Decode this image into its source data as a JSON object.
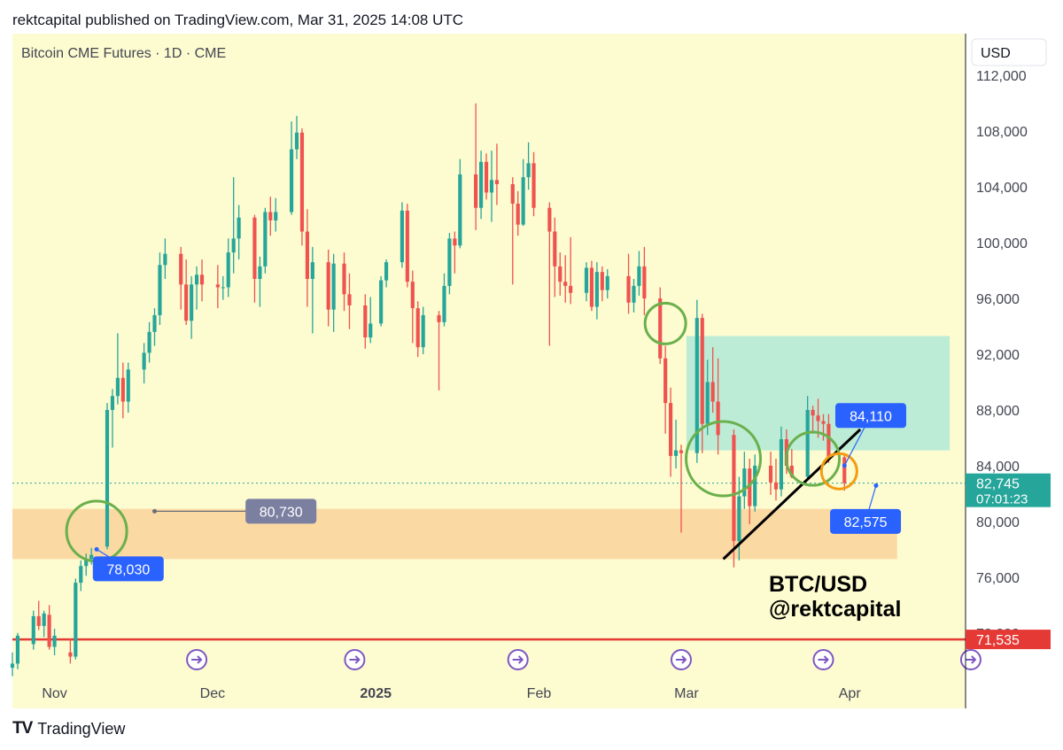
{
  "header": "rektcapital published on TradingView.com, Mar 31, 2025 14:08 UTC",
  "footer": {
    "logo": "TV",
    "brand": "TradingView"
  },
  "colors": {
    "background": "#fdfbd0",
    "up": "#26a69a",
    "down": "#ef5350",
    "label": "#2962ff",
    "zone_demand": "#fbd7a0",
    "zone_range": "#b8ebd5",
    "circle_green": "#6ab04c",
    "circle_orange": "#f39c12"
  },
  "chart_data": {
    "type": "candlestick",
    "title": "Bitcoin CME Futures · 1D · CME",
    "currency": "USD",
    "ylim": [
      69000,
      115000
    ],
    "y_ticks": [
      72000,
      76000,
      80000,
      84000,
      88000,
      92000,
      96000,
      100000,
      104000,
      108000,
      112000
    ],
    "y_tick_labels": [
      "72,000",
      "76,000",
      "80,000",
      "84,000",
      "88,000",
      "92,000",
      "96,000",
      "100,000",
      "104,000",
      "108,000",
      "112,000"
    ],
    "x_start": "2024-10-24",
    "x_end": "2025-04-23",
    "x_ticks": [
      {
        "date": "2024-11-01",
        "label": "Nov",
        "bold": false
      },
      {
        "date": "2024-12-01",
        "label": "Dec",
        "bold": false
      },
      {
        "date": "2025-01-01",
        "label": "2025",
        "bold": true
      },
      {
        "date": "2025-02-01",
        "label": "Feb",
        "bold": false
      },
      {
        "date": "2025-03-01",
        "label": "Mar",
        "bold": false
      },
      {
        "date": "2025-04-01",
        "label": "Apr",
        "bold": false
      }
    ],
    "ohlc": [
      [
        "2024-10-24",
        69500,
        70600,
        68900,
        69800
      ],
      [
        "2024-10-25",
        69800,
        72000,
        69400,
        71800
      ],
      [
        "2024-10-28",
        71200,
        73600,
        70800,
        73200
      ],
      [
        "2024-10-29",
        73200,
        74300,
        72200,
        72500
      ],
      [
        "2024-10-30",
        72500,
        73600,
        71700,
        73400
      ],
      [
        "2024-10-31",
        73300,
        74000,
        70800,
        71000
      ],
      [
        "2024-11-01",
        71000,
        72300,
        70400,
        71800
      ],
      [
        "2024-11-04",
        70600,
        71600,
        69800,
        70300
      ],
      [
        "2024-11-05",
        70300,
        75900,
        70100,
        75600
      ],
      [
        "2024-11-06",
        75600,
        77200,
        75000,
        76800
      ],
      [
        "2024-11-07",
        76800,
        77700,
        76100,
        77300
      ],
      [
        "2024-11-08",
        77300,
        78100,
        76900,
        77600
      ],
      [
        "2024-11-11",
        78200,
        88500,
        78000,
        88000
      ],
      [
        "2024-11-12",
        88000,
        89500,
        85300,
        89000
      ],
      [
        "2024-11-13",
        89000,
        93500,
        88400,
        90300
      ],
      [
        "2024-11-14",
        90300,
        91400,
        87400,
        88600
      ],
      [
        "2024-11-15",
        88600,
        91400,
        87800,
        90900
      ],
      [
        "2024-11-18",
        90900,
        92800,
        89900,
        92100
      ],
      [
        "2024-11-19",
        92100,
        94300,
        91400,
        93600
      ],
      [
        "2024-11-20",
        93600,
        95300,
        92600,
        94800
      ],
      [
        "2024-11-21",
        94800,
        99300,
        94100,
        98400
      ],
      [
        "2024-11-22",
        98400,
        100300,
        97400,
        99200
      ],
      [
        "2024-11-25",
        99200,
        99700,
        95200,
        97000
      ],
      [
        "2024-11-26",
        97000,
        98800,
        94100,
        94400
      ],
      [
        "2024-11-27",
        94400,
        97600,
        93100,
        97000
      ],
      [
        "2024-11-28",
        97000,
        98300,
        95200,
        97700
      ],
      [
        "2024-11-29",
        97700,
        98800,
        95800,
        97000
      ],
      [
        "2024-12-02",
        97000,
        98400,
        95300,
        96800
      ],
      [
        "2024-12-03",
        96800,
        97600,
        95900,
        96800
      ],
      [
        "2024-12-04",
        96800,
        100300,
        96100,
        99300
      ],
      [
        "2024-12-05",
        99300,
        104700,
        97800,
        100300
      ],
      [
        "2024-12-06",
        100300,
        102700,
        98800,
        101800
      ],
      [
        "2024-12-09",
        101800,
        102000,
        95700,
        97400
      ],
      [
        "2024-12-10",
        97400,
        99000,
        95400,
        98300
      ],
      [
        "2024-12-11",
        98300,
        102500,
        97800,
        102200
      ],
      [
        "2024-12-12",
        102200,
        103300,
        100500,
        101600
      ],
      [
        "2024-12-13",
        101600,
        103200,
        100800,
        102200
      ],
      [
        "2024-12-16",
        102200,
        108700,
        102000,
        106700
      ],
      [
        "2024-12-17",
        106700,
        109100,
        106000,
        107900
      ],
      [
        "2024-12-18",
        107900,
        108200,
        99800,
        100800
      ],
      [
        "2024-12-19",
        100800,
        102400,
        95400,
        97400
      ],
      [
        "2024-12-20",
        97400,
        99700,
        93500,
        98600
      ],
      [
        "2024-12-23",
        98600,
        99500,
        94000,
        95200
      ],
      [
        "2024-12-24",
        95200,
        99200,
        93600,
        98500
      ],
      [
        "2024-12-26",
        98500,
        99300,
        95100,
        96300
      ],
      [
        "2024-12-27",
        96300,
        97800,
        93800,
        95500
      ],
      [
        "2024-12-30",
        95500,
        96300,
        92400,
        93200
      ],
      [
        "2024-12-31",
        93200,
        96100,
        92800,
        94200
      ],
      [
        "2025-01-02",
        94200,
        97600,
        94000,
        97300
      ],
      [
        "2025-01-03",
        97300,
        98800,
        96800,
        98600
      ],
      [
        "2025-01-06",
        98600,
        102900,
        98200,
        102300
      ],
      [
        "2025-01-07",
        102300,
        102800,
        96800,
        97200
      ],
      [
        "2025-01-08",
        97200,
        98000,
        92800,
        95300
      ],
      [
        "2025-01-09",
        95300,
        95800,
        91800,
        92500
      ],
      [
        "2025-01-10",
        92500,
        95400,
        92000,
        94800
      ],
      [
        "2025-01-13",
        94800,
        95100,
        89400,
        94300
      ],
      [
        "2025-01-14",
        94300,
        97800,
        94000,
        96900
      ],
      [
        "2025-01-15",
        96900,
        100700,
        96300,
        100300
      ],
      [
        "2025-01-16",
        100300,
        100800,
        97800,
        99800
      ],
      [
        "2025-01-17",
        99800,
        106000,
        99600,
        104900
      ],
      [
        "2025-01-20",
        104900,
        110000,
        100900,
        102500
      ],
      [
        "2025-01-21",
        102500,
        106600,
        101700,
        105800
      ],
      [
        "2025-01-22",
        105800,
        106400,
        103100,
        103600
      ],
      [
        "2025-01-23",
        103600,
        106600,
        101500,
        104500
      ],
      [
        "2025-01-24",
        104500,
        107100,
        102700,
        104200
      ],
      [
        "2025-01-27",
        104200,
        104700,
        97000,
        102800
      ],
      [
        "2025-01-28",
        102800,
        103700,
        100500,
        101300
      ],
      [
        "2025-01-29",
        101300,
        106000,
        101200,
        104700
      ],
      [
        "2025-01-30",
        104700,
        107200,
        103800,
        105700
      ],
      [
        "2025-01-31",
        105700,
        106500,
        101900,
        102500
      ],
      [
        "2025-02-03",
        102500,
        102900,
        92600,
        100800
      ],
      [
        "2025-02-04",
        100800,
        101800,
        96100,
        98300
      ],
      [
        "2025-02-05",
        98300,
        99300,
        96200,
        97200
      ],
      [
        "2025-02-06",
        97200,
        99100,
        95700,
        96900
      ],
      [
        "2025-02-07",
        96900,
        100400,
        95600,
        96400
      ],
      [
        "2025-02-10",
        96400,
        98600,
        95800,
        98200
      ],
      [
        "2025-02-11",
        98200,
        98700,
        95100,
        95400
      ],
      [
        "2025-02-12",
        95400,
        98600,
        94500,
        97900
      ],
      [
        "2025-02-13",
        97900,
        98300,
        95800,
        96600
      ],
      [
        "2025-02-14",
        96600,
        98100,
        96000,
        97600
      ],
      [
        "2025-02-18",
        97600,
        99200,
        94900,
        95700
      ],
      [
        "2025-02-19",
        95700,
        97400,
        95000,
        96900
      ],
      [
        "2025-02-20",
        96900,
        99400,
        96200,
        98300
      ],
      [
        "2025-02-21",
        98300,
        99700,
        94800,
        96000
      ],
      [
        "2025-02-24",
        96000,
        96800,
        91300,
        91700
      ],
      [
        "2025-02-25",
        91700,
        92600,
        86300,
        88500
      ],
      [
        "2025-02-26",
        88500,
        89600,
        83200,
        84700
      ],
      [
        "2025-02-27",
        84700,
        87300,
        83800,
        85100
      ],
      [
        "2025-02-28",
        85100,
        85500,
        79200,
        84900
      ],
      [
        "2025-03-03",
        84900,
        95900,
        84200,
        94600
      ],
      [
        "2025-03-04",
        94600,
        94900,
        84900,
        87000
      ],
      [
        "2025-03-05",
        87000,
        91600,
        86200,
        90000
      ],
      [
        "2025-03-06",
        90000,
        92500,
        87800,
        88600
      ],
      [
        "2025-03-07",
        88600,
        91700,
        84800,
        86200
      ],
      [
        "2025-03-10",
        86200,
        86600,
        76700,
        78600
      ],
      [
        "2025-03-11",
        78600,
        83200,
        77200,
        81800
      ],
      [
        "2025-03-12",
        81800,
        85000,
        80900,
        83800
      ],
      [
        "2025-03-13",
        83800,
        84500,
        79800,
        81100
      ],
      [
        "2025-03-14",
        81100,
        84800,
        80700,
        84000
      ],
      [
        "2025-03-17",
        84000,
        85000,
        81900,
        82800
      ],
      [
        "2025-03-18",
        82800,
        84500,
        81500,
        82300
      ],
      [
        "2025-03-19",
        82300,
        86800,
        81800,
        85900
      ],
      [
        "2025-03-20",
        85900,
        86600,
        83400,
        84000
      ],
      [
        "2025-03-21",
        84000,
        85200,
        83100,
        83200
      ],
      [
        "2025-03-24",
        83200,
        89000,
        83000,
        88000
      ],
      [
        "2025-03-25",
        88000,
        88300,
        86300,
        87600
      ],
      [
        "2025-03-26",
        87600,
        88800,
        86000,
        87200
      ],
      [
        "2025-03-27",
        87200,
        87700,
        85800,
        87000
      ],
      [
        "2025-03-28",
        87000,
        87700,
        84200,
        84600
      ],
      [
        "2025-03-31",
        84600,
        84800,
        82200,
        82745
      ]
    ],
    "horizontal_lines": [
      {
        "value": 71535,
        "color": "#e53935",
        "style": "solid"
      },
      {
        "value": 82745,
        "color": "#26a69a",
        "style": "dotted"
      }
    ],
    "zones": [
      {
        "name": "demand",
        "from": "2024-10-24",
        "to": "2025-04-10",
        "low": 77300,
        "high": 80900
      },
      {
        "name": "range",
        "from": "2025-03-01",
        "to": "2025-04-20",
        "low": 85100,
        "high": 93300
      }
    ],
    "trendline": {
      "from": [
        "2025-03-08",
        77300
      ],
      "to": [
        "2025-04-03",
        86600
      ]
    },
    "circles": [
      {
        "date": "2024-11-09",
        "price": 79300,
        "color": "green",
        "r": 34
      },
      {
        "date": "2025-02-25",
        "price": 94200,
        "color": "green",
        "r": 23
      },
      {
        "date": "2025-03-08",
        "price": 84500,
        "color": "green",
        "r": 42
      },
      {
        "date": "2025-03-25",
        "price": 84500,
        "color": "green",
        "r": 30
      },
      {
        "date": "2025-03-30",
        "price": 83600,
        "color": "orange",
        "r": 20
      }
    ],
    "price_labels": [
      {
        "text": "80,730",
        "date": "2024-11-20",
        "price": 80730,
        "box_date": "2024-12-14",
        "box_price": 80730,
        "muted": true
      },
      {
        "text": "78,030",
        "date": "2024-11-09",
        "price": 78000,
        "box_date": "2024-11-15",
        "box_price": 76600,
        "muted": false
      },
      {
        "text": "84,110",
        "date": "2025-03-31",
        "price": 84000,
        "box_date": "2025-04-05",
        "box_price": 87600,
        "muted": false
      },
      {
        "text": "82,575",
        "date": "2025-04-06",
        "price": 82575,
        "box_date": "2025-04-04",
        "box_price": 80000,
        "muted": false
      }
    ],
    "axis_tags": [
      {
        "text": "82,745",
        "sub": "07:01:23",
        "value": 82745,
        "color": "#26a69a"
      },
      {
        "text": "71,535",
        "value": 71535,
        "color": "#e53935"
      }
    ],
    "event_markers": [
      "2024-11-28",
      "2024-12-28",
      "2025-01-28",
      "2025-02-28",
      "2025-03-27",
      "2025-04-24"
    ],
    "annotation": [
      "BTC/USD",
      "@rektcapital"
    ]
  }
}
